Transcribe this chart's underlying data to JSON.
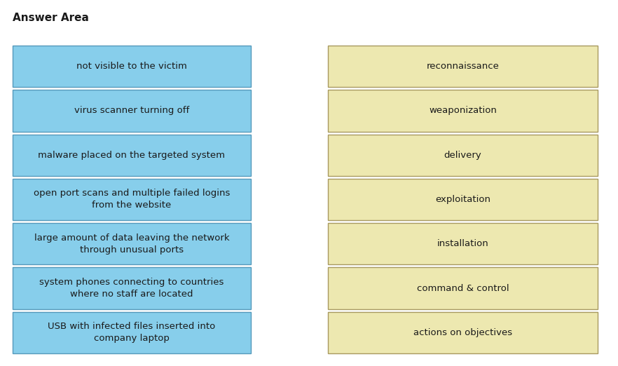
{
  "title": "Answer Area",
  "title_fontsize": 11,
  "title_fontweight": "bold",
  "left_boxes": [
    "not visible to the victim",
    "virus scanner turning off",
    "malware placed on the targeted system",
    "open port scans and multiple failed logins\nfrom the website",
    "large amount of data leaving the network\nthrough unusual ports",
    "system phones connecting to countries\nwhere no staff are located",
    "USB with infected files inserted into\ncompany laptop"
  ],
  "right_boxes": [
    "reconnaissance",
    "weaponization",
    "delivery",
    "exploitation",
    "installation",
    "command & control",
    "actions on objectives"
  ],
  "left_bg": "#87CEEB",
  "right_bg": "#EDE8B0",
  "left_edge_color": "#5599BB",
  "right_edge_color": "#A89960",
  "text_color": "#1a1a1a",
  "bg_color": "#ffffff",
  "font_size": 9.5,
  "fig_width": 8.82,
  "fig_height": 5.22,
  "dpi": 100
}
